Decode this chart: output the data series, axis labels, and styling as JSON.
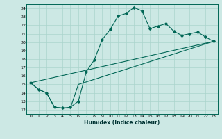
{
  "xlabel": "Humidex (Indice chaleur)",
  "background_color": "#cce8e4",
  "grid_color": "#aad4cc",
  "line_color": "#006655",
  "xlim": [
    -0.5,
    23.5
  ],
  "ylim": [
    11.5,
    24.5
  ],
  "xticks": [
    0,
    1,
    2,
    3,
    4,
    5,
    6,
    7,
    8,
    9,
    10,
    11,
    12,
    13,
    14,
    15,
    16,
    17,
    18,
    19,
    20,
    21,
    22,
    23
  ],
  "yticks": [
    12,
    13,
    14,
    15,
    16,
    17,
    18,
    19,
    20,
    21,
    22,
    23,
    24
  ],
  "line1_x": [
    0,
    1,
    2,
    3,
    4,
    5,
    6,
    7,
    8,
    9,
    10,
    11,
    12,
    13,
    14,
    15,
    16,
    17,
    18,
    19,
    20,
    21,
    22,
    23
  ],
  "line1_y": [
    15.2,
    14.4,
    14.0,
    12.3,
    12.2,
    12.3,
    13.0,
    16.5,
    17.9,
    20.3,
    21.5,
    23.1,
    23.4,
    24.1,
    23.7,
    21.6,
    21.9,
    22.2,
    21.3,
    20.8,
    21.0,
    21.2,
    20.6,
    20.1
  ],
  "line2_x": [
    0,
    1,
    2,
    3,
    4,
    5,
    6,
    23
  ],
  "line2_y": [
    15.2,
    14.4,
    14.0,
    12.3,
    12.2,
    12.2,
    15.0,
    20.1
  ],
  "line3_x": [
    0,
    23
  ],
  "line3_y": [
    15.2,
    20.1
  ]
}
